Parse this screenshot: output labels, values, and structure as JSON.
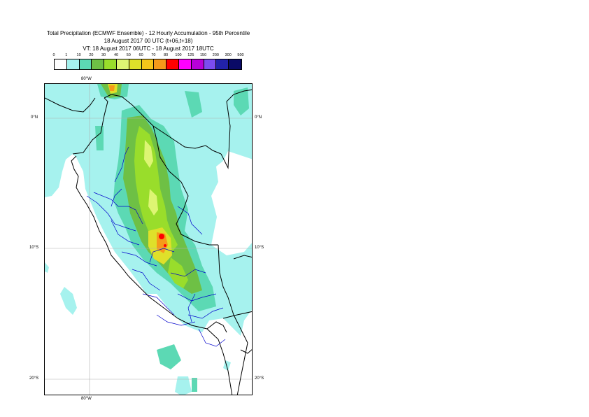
{
  "title": {
    "line1": "Total Precipitation (ECMWF Ensemble) - 12 Hourly Accumulation - 95th Percentile",
    "line2": "18 August 2017 00 UTC (t+06,t+18)",
    "line3": "VT: 18 August 2017 06UTC - 18 August 2017 18UTC"
  },
  "legend": {
    "thresholds": [
      "0",
      "1",
      "10",
      "20",
      "30",
      "40",
      "50",
      "60",
      "70",
      "80",
      "100",
      "125",
      "150",
      "200",
      "300",
      "500"
    ],
    "colors": [
      "#ffffff",
      "#a6f2ee",
      "#5cd9b4",
      "#6ec045",
      "#99dd2b",
      "#ddf573",
      "#dfe02a",
      "#f5c61a",
      "#f59a1a",
      "#ff0000",
      "#ff00ff",
      "#b800d8",
      "#7c4cf0",
      "#2222aa",
      "#0a0a66"
    ]
  },
  "axes": {
    "top_lon": "80°W",
    "bottom_lon": "80°W",
    "lat_labels": [
      "0°N",
      "10°S",
      "20°S"
    ]
  },
  "colors": {
    "light": "#a6f2ee",
    "medium": "#5cd9b4",
    "green": "#6ec045",
    "lime": "#99dd2b",
    "pale_yellow": "#ddf573",
    "yellow": "#dfe02a",
    "orange": "#f59a1a",
    "red": "#ff0000",
    "border": "#000000",
    "regions": "#0000cc",
    "grid": "#b0b0b0"
  }
}
